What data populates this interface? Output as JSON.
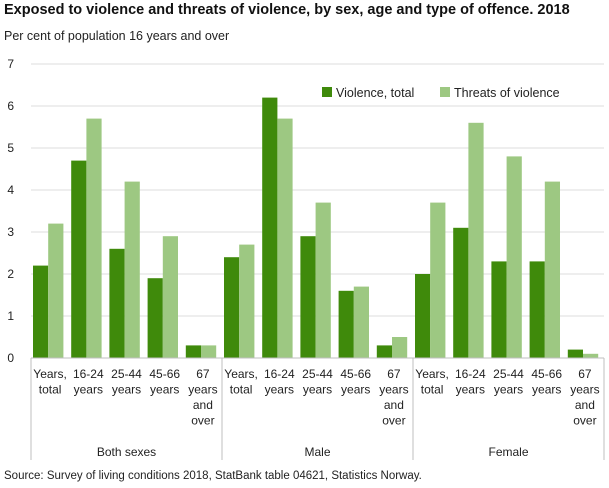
{
  "title": "Exposed to violence and threats of violence, by sex, age and type of offence. 2018",
  "subtitle": "Per cent of population 16 years and over",
  "source": "Source: Survey of living conditions 2018, StatBank table 04621, Statistics Norway.",
  "colors": {
    "violence_total": "#3f8a0b",
    "threats": "#9dc882",
    "grid": "#dcdcdc",
    "axis": "#bfbfbf"
  },
  "chart_data": {
    "type": "bar",
    "title": "Exposed to violence and threats of violence, by sex, age and type of offence. 2018",
    "subtitle": "Per cent of population 16 years and over",
    "ylim": [
      0,
      7
    ],
    "yticks": [
      0,
      1,
      2,
      3,
      4,
      5,
      6,
      7
    ],
    "grid": true,
    "legend_position": "top-right",
    "groups": [
      {
        "name": "Both sexes",
        "categories": [
          "Years, total",
          "16-24 years",
          "25-44 years",
          "45-66 years",
          "67 years and over"
        ]
      },
      {
        "name": "Male",
        "categories": [
          "Years, total",
          "16-24 years",
          "25-44 years",
          "45-66 years",
          "67 years and over"
        ]
      },
      {
        "name": "Female",
        "categories": [
          "Years, total",
          "16-24 years",
          "25-44 years",
          "45-66 years",
          "67 years and over"
        ]
      }
    ],
    "category_label_lines": [
      [
        "Years,",
        "total"
      ],
      [
        "16-24",
        "years"
      ],
      [
        "25-44",
        "years"
      ],
      [
        "45-66",
        "years"
      ],
      [
        "67",
        "years",
        "and",
        "over"
      ]
    ],
    "series": [
      {
        "name": "Violence, total",
        "values": [
          2.2,
          4.7,
          2.6,
          1.9,
          0.3,
          2.4,
          6.2,
          2.9,
          1.6,
          0.3,
          2.0,
          3.1,
          2.3,
          2.3,
          0.2
        ]
      },
      {
        "name": "Threats of violence",
        "values": [
          3.2,
          5.7,
          4.2,
          2.9,
          0.3,
          2.7,
          5.7,
          3.7,
          1.7,
          0.5,
          3.7,
          5.6,
          4.8,
          4.2,
          0.1
        ]
      }
    ]
  }
}
